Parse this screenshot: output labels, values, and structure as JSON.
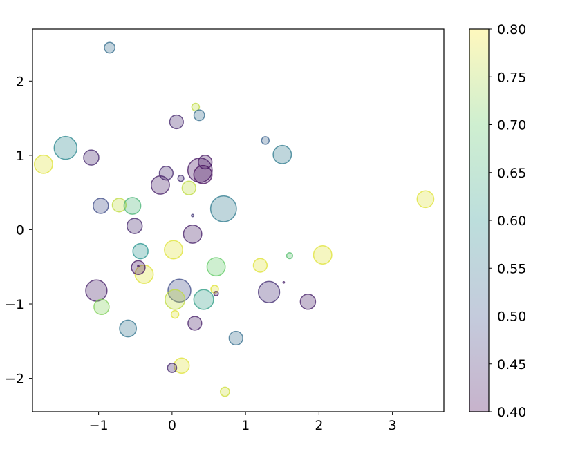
{
  "chart_data": {
    "type": "scatter",
    "title": "",
    "xlabel": "",
    "ylabel": "",
    "xlim": [
      -1.9,
      3.7
    ],
    "ylim": [
      -2.45,
      2.7
    ],
    "grid": false,
    "xticks": [
      -1,
      0,
      1,
      2,
      3
    ],
    "xtick_labels": [
      "−1",
      "0",
      "1",
      "2",
      "3"
    ],
    "yticks": [
      -2,
      -1,
      0,
      1,
      2
    ],
    "ytick_labels": [
      "−2",
      "−1",
      "0",
      "1",
      "2"
    ],
    "colorbar": {
      "range": [
        0.4,
        0.8
      ],
      "ticks": [
        0.4,
        0.45,
        0.5,
        0.55,
        0.6,
        0.65,
        0.7,
        0.75,
        0.8
      ],
      "tick_labels": [
        "0.40",
        "0.45",
        "0.50",
        "0.55",
        "0.60",
        "0.65",
        "0.70",
        "0.75",
        "0.80"
      ],
      "colormap_stops": [
        "#440154",
        "#3b528b",
        "#21918c",
        "#5ec962",
        "#fde725"
      ]
    },
    "alpha": 0.3,
    "points": [
      {
        "x": -0.85,
        "y": 2.45,
        "size": 0.35,
        "c": 0.54
      },
      {
        "x": 0.32,
        "y": 1.65,
        "size": 0.25,
        "c": 0.76
      },
      {
        "x": 0.37,
        "y": 1.54,
        "size": 0.35,
        "c": 0.54
      },
      {
        "x": 0.06,
        "y": 1.45,
        "size": 0.45,
        "c": 0.44
      },
      {
        "x": -1.45,
        "y": 1.1,
        "size": 0.75,
        "c": 0.58
      },
      {
        "x": -1.75,
        "y": 0.88,
        "size": 0.6,
        "c": 0.78
      },
      {
        "x": -1.1,
        "y": 0.97,
        "size": 0.5,
        "c": 0.44
      },
      {
        "x": 1.27,
        "y": 1.2,
        "size": 0.25,
        "c": 0.52
      },
      {
        "x": 1.5,
        "y": 1.01,
        "size": 0.6,
        "c": 0.56
      },
      {
        "x": 0.45,
        "y": 0.91,
        "size": 0.45,
        "c": 0.42
      },
      {
        "x": 0.38,
        "y": 0.8,
        "size": 0.8,
        "c": 0.42
      },
      {
        "x": 0.42,
        "y": 0.74,
        "size": 0.6,
        "c": 0.41
      },
      {
        "x": -0.08,
        "y": 0.76,
        "size": 0.45,
        "c": 0.44
      },
      {
        "x": 0.12,
        "y": 0.69,
        "size": 0.2,
        "c": 0.45
      },
      {
        "x": -0.16,
        "y": 0.6,
        "size": 0.6,
        "c": 0.43
      },
      {
        "x": 0.23,
        "y": 0.56,
        "size": 0.45,
        "c": 0.76
      },
      {
        "x": -0.72,
        "y": 0.33,
        "size": 0.45,
        "c": 0.76
      },
      {
        "x": -0.97,
        "y": 0.32,
        "size": 0.5,
        "c": 0.49
      },
      {
        "x": -0.54,
        "y": 0.32,
        "size": 0.55,
        "c": 0.66
      },
      {
        "x": 0.7,
        "y": 0.28,
        "size": 0.85,
        "c": 0.56
      },
      {
        "x": 0.28,
        "y": 0.19,
        "size": 0.08,
        "c": 0.46
      },
      {
        "x": -0.51,
        "y": 0.05,
        "size": 0.5,
        "c": 0.44
      },
      {
        "x": 0.28,
        "y": -0.06,
        "size": 0.6,
        "c": 0.43
      },
      {
        "x": -0.43,
        "y": -0.29,
        "size": 0.5,
        "c": 0.6
      },
      {
        "x": 0.02,
        "y": -0.27,
        "size": 0.6,
        "c": 0.78
      },
      {
        "x": 0.6,
        "y": -0.5,
        "size": 0.6,
        "c": 0.7
      },
      {
        "x": 1.2,
        "y": -0.48,
        "size": 0.45,
        "c": 0.78
      },
      {
        "x": 1.6,
        "y": -0.35,
        "size": 0.2,
        "c": 0.68
      },
      {
        "x": 2.05,
        "y": -0.34,
        "size": 0.6,
        "c": 0.78
      },
      {
        "x": -0.38,
        "y": -0.6,
        "size": 0.6,
        "c": 0.78
      },
      {
        "x": -0.46,
        "y": -0.51,
        "size": 0.45,
        "c": 0.42
      },
      {
        "x": -0.46,
        "y": -0.49,
        "size": 0.05,
        "c": 0.42
      },
      {
        "x": -1.03,
        "y": -0.82,
        "size": 0.7,
        "c": 0.43
      },
      {
        "x": 0.1,
        "y": -0.82,
        "size": 0.75,
        "c": 0.49
      },
      {
        "x": 1.32,
        "y": -0.84,
        "size": 0.7,
        "c": 0.45
      },
      {
        "x": 1.52,
        "y": -0.71,
        "size": 0.05,
        "c": 0.43
      },
      {
        "x": 1.85,
        "y": -0.97,
        "size": 0.5,
        "c": 0.43
      },
      {
        "x": 0.58,
        "y": -0.8,
        "size": 0.25,
        "c": 0.78
      },
      {
        "x": 0.6,
        "y": -0.86,
        "size": 0.15,
        "c": 0.42
      },
      {
        "x": 0.04,
        "y": -0.94,
        "size": 0.65,
        "c": 0.76
      },
      {
        "x": 0.43,
        "y": -0.94,
        "size": 0.65,
        "c": 0.62
      },
      {
        "x": -0.96,
        "y": -1.04,
        "size": 0.5,
        "c": 0.72
      },
      {
        "x": 0.04,
        "y": -1.14,
        "size": 0.25,
        "c": 0.78
      },
      {
        "x": 0.31,
        "y": -1.26,
        "size": 0.45,
        "c": 0.43
      },
      {
        "x": -0.6,
        "y": -1.33,
        "size": 0.55,
        "c": 0.55
      },
      {
        "x": 0.87,
        "y": -1.46,
        "size": 0.45,
        "c": 0.54
      },
      {
        "x": 0.13,
        "y": -1.83,
        "size": 0.5,
        "c": 0.78
      },
      {
        "x": 0.0,
        "y": -1.86,
        "size": 0.3,
        "c": 0.44
      },
      {
        "x": 0.72,
        "y": -2.18,
        "size": 0.3,
        "c": 0.77
      },
      {
        "x": 3.45,
        "y": 0.41,
        "size": 0.55,
        "c": 0.78
      }
    ]
  }
}
